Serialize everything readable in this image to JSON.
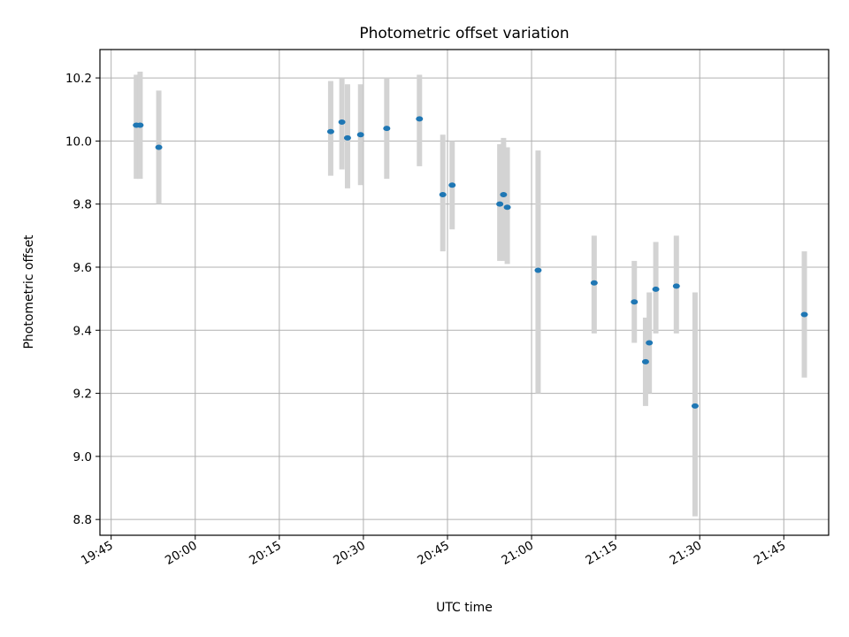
{
  "chart_data": {
    "type": "scatter",
    "title": "Photometric offset variation",
    "xlabel": "UTC time",
    "ylabel": "Photometric offset",
    "xlim": [
      "19:43",
      "21:53"
    ],
    "ylim": [
      8.75,
      10.29
    ],
    "xticks": [
      "19:45",
      "20:00",
      "20:15",
      "20:30",
      "20:45",
      "21:00",
      "21:15",
      "21:30",
      "21:45"
    ],
    "yticks": [
      "8.8",
      "9.0",
      "9.2",
      "9.4",
      "9.6",
      "9.8",
      "10.0",
      "10.2"
    ],
    "grid": true,
    "colors": {
      "point": "#1f77b4",
      "errorbar": "#d3d3d3",
      "grid": "#b0b0b0"
    },
    "points": [
      {
        "time": "19:49:30",
        "y": 10.05,
        "ylow": 9.88,
        "yhigh": 10.21
      },
      {
        "time": "19:50:10",
        "y": 10.05,
        "ylow": 9.88,
        "yhigh": 10.22
      },
      {
        "time": "19:53:30",
        "y": 9.98,
        "ylow": 9.8,
        "yhigh": 10.16
      },
      {
        "time": "20:24:10",
        "y": 10.03,
        "ylow": 9.89,
        "yhigh": 10.19
      },
      {
        "time": "20:26:10",
        "y": 10.06,
        "ylow": 9.91,
        "yhigh": 10.2
      },
      {
        "time": "20:27:10",
        "y": 10.01,
        "ylow": 9.85,
        "yhigh": 10.18
      },
      {
        "time": "20:29:30",
        "y": 10.02,
        "ylow": 9.86,
        "yhigh": 10.18
      },
      {
        "time": "20:34:10",
        "y": 10.04,
        "ylow": 9.88,
        "yhigh": 10.2
      },
      {
        "time": "20:40:00",
        "y": 10.07,
        "ylow": 9.92,
        "yhigh": 10.21
      },
      {
        "time": "20:44:10",
        "y": 9.83,
        "ylow": 9.65,
        "yhigh": 10.02
      },
      {
        "time": "20:45:50",
        "y": 9.86,
        "ylow": 9.72,
        "yhigh": 10.0
      },
      {
        "time": "20:54:20",
        "y": 9.8,
        "ylow": 9.62,
        "yhigh": 9.99
      },
      {
        "time": "20:55:00",
        "y": 9.83,
        "ylow": 9.62,
        "yhigh": 10.01
      },
      {
        "time": "20:55:40",
        "y": 9.79,
        "ylow": 9.61,
        "yhigh": 9.98
      },
      {
        "time": "21:01:10",
        "y": 9.59,
        "ylow": 9.2,
        "yhigh": 9.97
      },
      {
        "time": "21:11:10",
        "y": 9.55,
        "ylow": 9.39,
        "yhigh": 9.7
      },
      {
        "time": "21:18:20",
        "y": 9.49,
        "ylow": 9.36,
        "yhigh": 9.62
      },
      {
        "time": "21:20:20",
        "y": 9.3,
        "ylow": 9.16,
        "yhigh": 9.44
      },
      {
        "time": "21:21:00",
        "y": 9.36,
        "ylow": 9.2,
        "yhigh": 9.52
      },
      {
        "time": "21:22:10",
        "y": 9.53,
        "ylow": 9.39,
        "yhigh": 9.68
      },
      {
        "time": "21:25:50",
        "y": 9.54,
        "ylow": 9.39,
        "yhigh": 9.7
      },
      {
        "time": "21:29:10",
        "y": 9.16,
        "ylow": 8.81,
        "yhigh": 9.52
      },
      {
        "time": "21:48:40",
        "y": 9.45,
        "ylow": 9.25,
        "yhigh": 9.65
      }
    ]
  }
}
